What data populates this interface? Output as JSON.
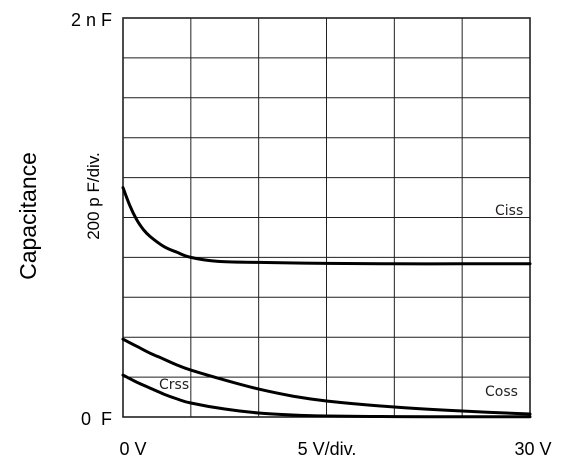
{
  "chart_data": {
    "type": "line",
    "title": "",
    "ylabel": "Capacitance",
    "yscale_label": "200 p F/div.",
    "xscale_label": "5 V/div.",
    "y_tick_labels": {
      "top": "2 n F",
      "bottom": "0  F"
    },
    "x_tick_labels": {
      "left": "0 V",
      "right": "30 V"
    },
    "xlim": [
      0,
      30
    ],
    "ylim": [
      0,
      2000
    ],
    "x_unit": "V",
    "y_unit": "pF",
    "grid": true,
    "grid_divisions": {
      "x": 6,
      "y": 10
    },
    "series": [
      {
        "name": "Ciss",
        "x": [
          0,
          0.5,
          1,
          1.5,
          2,
          3,
          4,
          5,
          7,
          10,
          15,
          20,
          25,
          30
        ],
        "y": [
          1150,
          1060,
          990,
          940,
          905,
          855,
          825,
          800,
          780,
          775,
          770,
          768,
          768,
          768
        ]
      },
      {
        "name": "Coss",
        "x": [
          0,
          1,
          2,
          3,
          4,
          5,
          7.5,
          10,
          12.5,
          15,
          20,
          25,
          30
        ],
        "y": [
          390,
          355,
          320,
          290,
          260,
          235,
          185,
          140,
          105,
          80,
          50,
          30,
          15
        ]
      },
      {
        "name": "Crss",
        "x": [
          0,
          1,
          2,
          3,
          4,
          5,
          7.5,
          10,
          12.5,
          15,
          20,
          25,
          30
        ],
        "y": [
          210,
          175,
          145,
          115,
          90,
          70,
          40,
          20,
          10,
          5,
          2,
          1,
          1
        ]
      }
    ]
  }
}
